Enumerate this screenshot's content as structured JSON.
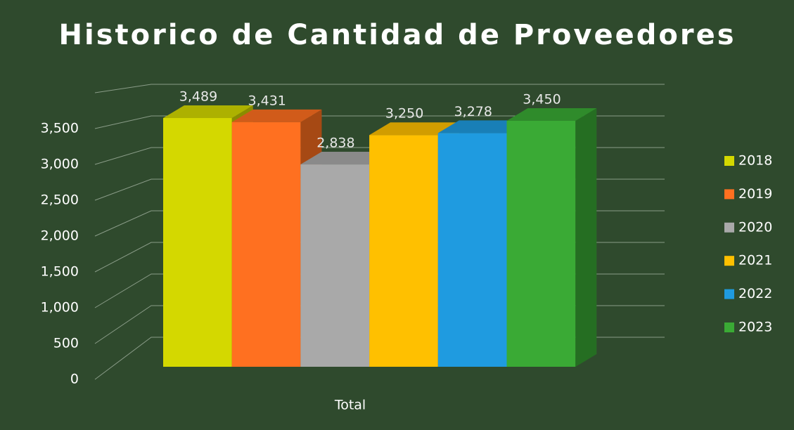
{
  "chart_data": {
    "type": "bar3d",
    "title": "Historico de Cantidad de Proveedores",
    "categories": [
      "Total"
    ],
    "series": [
      {
        "name": "2018",
        "color": "#d4d800",
        "values": [
          3489
        ],
        "value_labels": [
          "3,489"
        ]
      },
      {
        "name": "2019",
        "color": "#ff7020",
        "values": [
          3431
        ],
        "value_labels": [
          "3,431"
        ]
      },
      {
        "name": "2020",
        "color": "#a9a9a9",
        "values": [
          2838
        ],
        "value_labels": [
          "2,838"
        ]
      },
      {
        "name": "2021",
        "color": "#ffc000",
        "values": [
          3250
        ],
        "value_labels": [
          "3,250"
        ]
      },
      {
        "name": "2022",
        "color": "#1f9be0",
        "values": [
          3278
        ],
        "value_labels": [
          "3,278"
        ]
      },
      {
        "name": "2023",
        "color": "#3aaa35",
        "values": [
          3450
        ],
        "value_labels": [
          "3,450"
        ]
      }
    ],
    "ylim": [
      0,
      4000
    ],
    "yticks": [
      0,
      500,
      {
        "value": 1000,
        "label": "1,000"
      },
      {
        "value": 1500,
        "label": "1,500"
      },
      {
        "value": 2000,
        "label": "2,000"
      },
      {
        "value": 2500,
        "label": "2,500"
      },
      {
        "value": 3000,
        "label": "3,000"
      },
      {
        "value": 3500,
        "label": "3,500"
      }
    ],
    "grid": true,
    "legend": "right"
  }
}
